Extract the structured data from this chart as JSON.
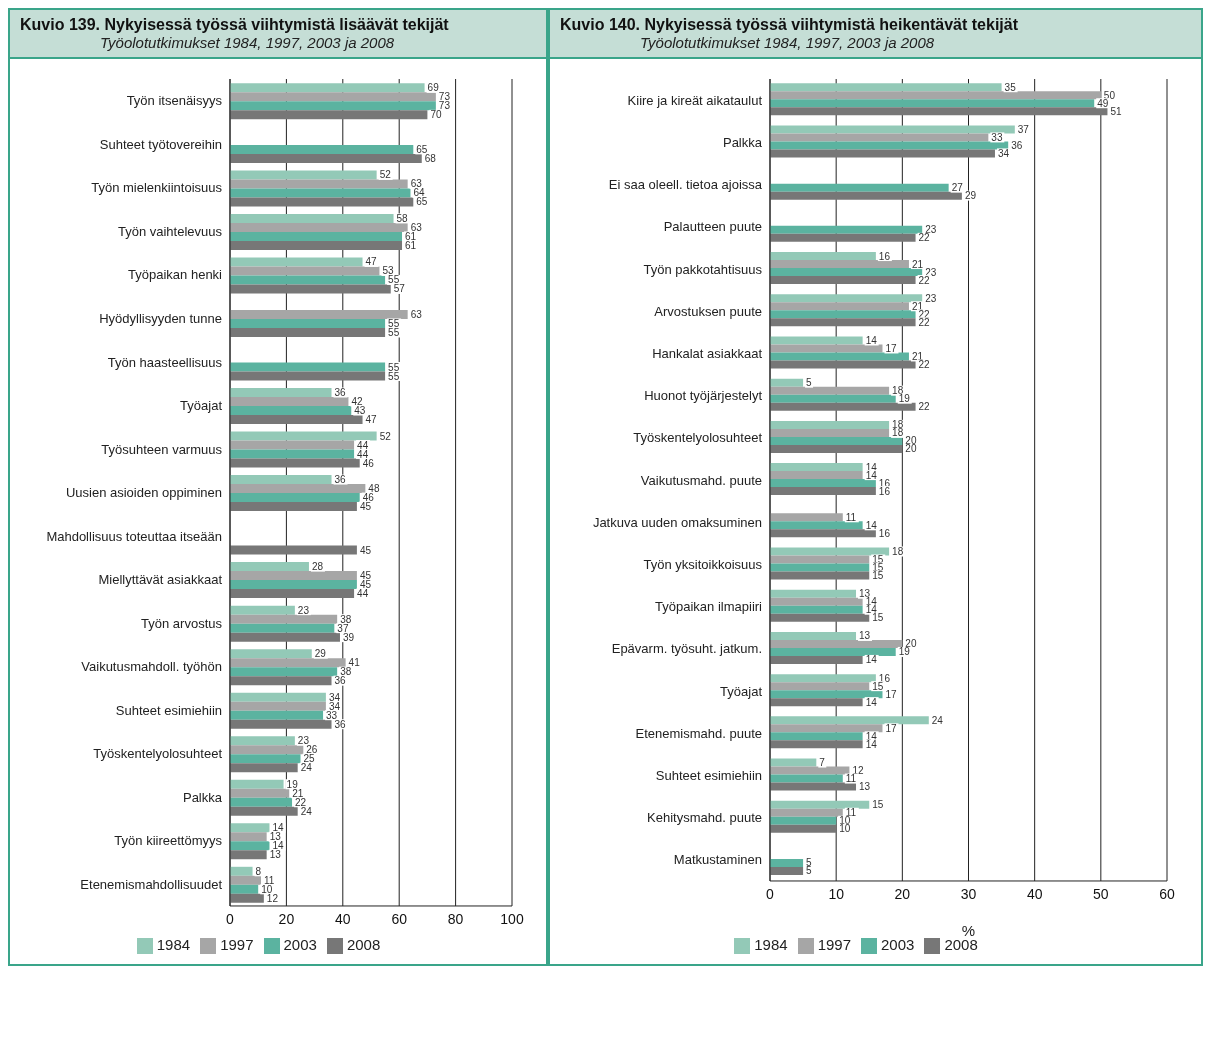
{
  "chart_data": [
    {
      "type": "bar",
      "orientation": "horizontal",
      "title": "Kuvio 139. Nykyisessä työssä viihtymistä lisäävät tekijät",
      "subtitle": "Työolotutkimukset 1984, 1997, 2003 ja 2008",
      "categories": [
        "Työn itsenäisyys",
        "Suhteet työtovereihin",
        "Työn mielenkiintoisuus",
        "Työn vaihtelevuus",
        "Työpaikan henki",
        "Hyödyllisyyden tunne",
        "Työn haasteellisuus",
        "Työajat",
        "Työsuhteen varmuus",
        "Uusien asioiden oppiminen",
        "Mahdollisuus toteuttaa itseään",
        "Miellyttävät asiakkaat",
        "Työn arvostus",
        "Vaikutusmahdoll. työhön",
        "Suhteet esimiehiin",
        "Työskentelyolosuhteet",
        "Palkka",
        "Työn kiireettömyys",
        "Etenemismahdollisuudet"
      ],
      "series": [
        {
          "name": "1984",
          "color": "#93c9b7",
          "values": [
            69,
            null,
            52,
            58,
            47,
            null,
            null,
            36,
            52,
            36,
            null,
            28,
            23,
            29,
            34,
            23,
            19,
            14,
            8
          ]
        },
        {
          "name": "1997",
          "color": "#a6a6a6",
          "values": [
            73,
            null,
            63,
            63,
            53,
            63,
            null,
            42,
            44,
            48,
            null,
            45,
            38,
            41,
            34,
            26,
            21,
            13,
            11
          ]
        },
        {
          "name": "2003",
          "color": "#5bb3a0",
          "values": [
            73,
            65,
            64,
            61,
            55,
            55,
            55,
            43,
            44,
            46,
            null,
            45,
            37,
            38,
            33,
            25,
            22,
            14,
            10
          ]
        },
        {
          "name": "2008",
          "color": "#777777",
          "values": [
            70,
            68,
            65,
            61,
            57,
            55,
            55,
            47,
            46,
            45,
            45,
            44,
            39,
            36,
            36,
            24,
            24,
            13,
            12
          ]
        }
      ],
      "xlim": [
        0,
        100
      ],
      "xticks": [
        0,
        20,
        40,
        60,
        80,
        100
      ],
      "grid": "x",
      "legend": "bottom",
      "data_labels": true
    },
    {
      "type": "bar",
      "orientation": "horizontal",
      "title": "Kuvio 140. Nykyisessä työssä viihtymistä heikentävät tekijät",
      "subtitle": "Työolotutkimukset 1984, 1997, 2003 ja 2008",
      "xlabel": "%",
      "categories": [
        "Kiire ja kireät aikataulut",
        "Palkka",
        "Ei saa oleell. tietoa ajoissa",
        "Palautteen puute",
        "Työn pakkotahtisuus",
        "Arvostuksen puute",
        "Hankalat asiakkaat",
        "Huonot työjärjestelyt",
        "Työskentelyolosuhteet",
        "Vaikutusmahd. puute",
        "Jatkuva uuden omaksuminen",
        "Työn yksitoikkoisuus",
        "Työpaikan ilmapiiri",
        "Epävarm. työsuht. jatkum.",
        "Työajat",
        "Etenemismahd. puute",
        "Suhteet esimiehiin",
        "Kehitysmahd. puute",
        "Matkustaminen"
      ],
      "series": [
        {
          "name": "1984",
          "color": "#93c9b7",
          "values": [
            35,
            37,
            null,
            null,
            16,
            23,
            14,
            5,
            18,
            14,
            null,
            18,
            13,
            13,
            16,
            24,
            7,
            15,
            null
          ]
        },
        {
          "name": "1997",
          "color": "#a6a6a6",
          "values": [
            50,
            33,
            null,
            null,
            21,
            21,
            17,
            18,
            18,
            14,
            11,
            15,
            14,
            20,
            15,
            17,
            12,
            11,
            null
          ]
        },
        {
          "name": "2003",
          "color": "#5bb3a0",
          "values": [
            49,
            36,
            27,
            23,
            23,
            22,
            21,
            19,
            20,
            16,
            14,
            15,
            14,
            19,
            17,
            14,
            11,
            10,
            5
          ]
        },
        {
          "name": "2008",
          "color": "#777777",
          "values": [
            51,
            34,
            29,
            22,
            22,
            22,
            22,
            22,
            20,
            16,
            16,
            15,
            15,
            14,
            14,
            14,
            13,
            10,
            5
          ]
        }
      ],
      "xlim": [
        0,
        60
      ],
      "xticks": [
        0,
        10,
        20,
        30,
        40,
        50,
        60
      ],
      "grid": "x",
      "legend": "bottom",
      "data_labels": true
    }
  ]
}
